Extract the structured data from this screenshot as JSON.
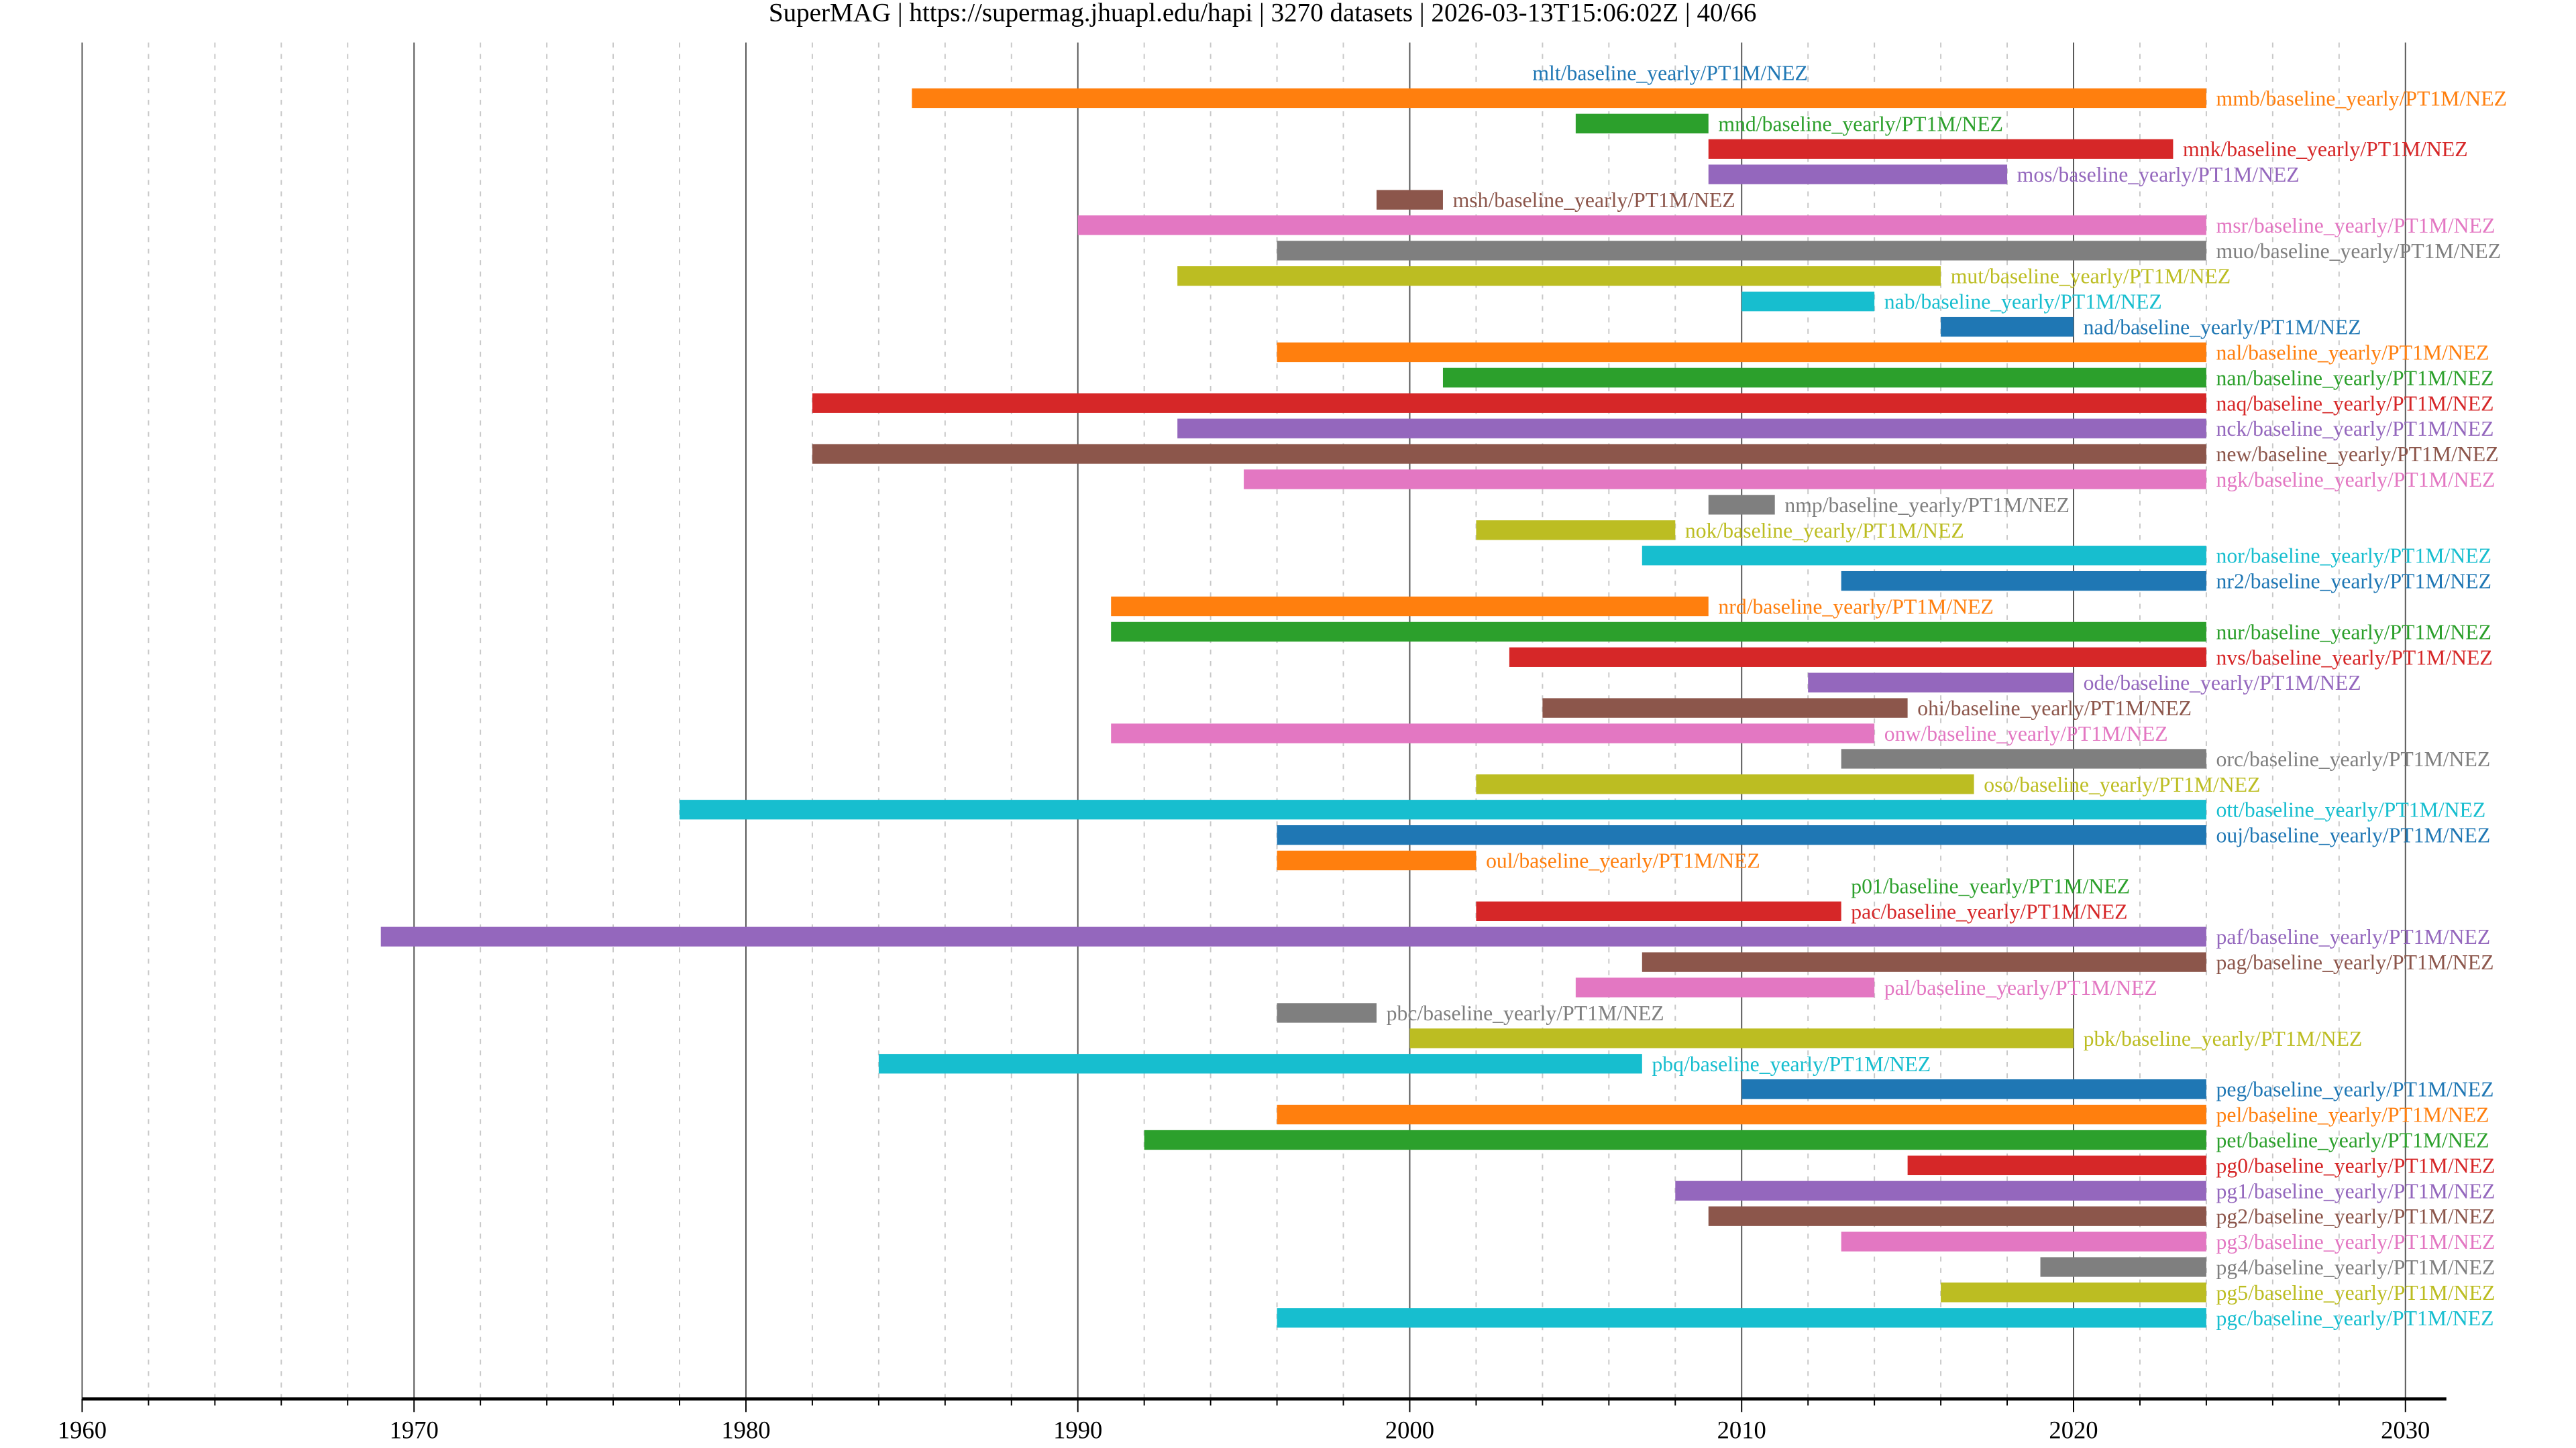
{
  "chart_data": {
    "type": "timeline",
    "title": "SuperMAG | https://supermag.jhuapl.edu/hapi | 3270 datasets | 2026-03-13T15:06:02Z | 40/66",
    "xlabel": "",
    "ylabel": "",
    "xlim": [
      1960,
      2031.3
    ],
    "xticks": [
      1960,
      1970,
      1980,
      1990,
      2000,
      2010,
      2020,
      2030
    ],
    "grid": {
      "major": "solid",
      "minor": "dashed"
    },
    "colors": [
      "#1f77b4",
      "#ff7f0e",
      "#2ca02c",
      "#d62728",
      "#9467bd",
      "#8c564b",
      "#e377c2",
      "#7f7f7f",
      "#bcbd22",
      "#17becf"
    ],
    "series": [
      {
        "name": "mlt/baseline_yearly/PT1M/NEZ",
        "start": 2024,
        "end": 2024
      },
      {
        "name": "mmb/baseline_yearly/PT1M/NEZ",
        "start": 1985,
        "end": 2024
      },
      {
        "name": "mnd/baseline_yearly/PT1M/NEZ",
        "start": 2005,
        "end": 2009
      },
      {
        "name": "mnk/baseline_yearly/PT1M/NEZ",
        "start": 2009,
        "end": 2023
      },
      {
        "name": "mos/baseline_yearly/PT1M/NEZ",
        "start": 2009,
        "end": 2018
      },
      {
        "name": "msh/baseline_yearly/PT1M/NEZ",
        "start": 1999,
        "end": 2001
      },
      {
        "name": "msr/baseline_yearly/PT1M/NEZ",
        "start": 1990,
        "end": 2024
      },
      {
        "name": "muo/baseline_yearly/PT1M/NEZ",
        "start": 1996,
        "end": 2024
      },
      {
        "name": "mut/baseline_yearly/PT1M/NEZ",
        "start": 1993,
        "end": 2016
      },
      {
        "name": "nab/baseline_yearly/PT1M/NEZ",
        "start": 2010,
        "end": 2014
      },
      {
        "name": "nad/baseline_yearly/PT1M/NEZ",
        "start": 2016,
        "end": 2020
      },
      {
        "name": "nal/baseline_yearly/PT1M/NEZ",
        "start": 1996,
        "end": 2024
      },
      {
        "name": "nan/baseline_yearly/PT1M/NEZ",
        "start": 2001,
        "end": 2024
      },
      {
        "name": "naq/baseline_yearly/PT1M/NEZ",
        "start": 1982,
        "end": 2024
      },
      {
        "name": "nck/baseline_yearly/PT1M/NEZ",
        "start": 1993,
        "end": 2024
      },
      {
        "name": "new/baseline_yearly/PT1M/NEZ",
        "start": 1982,
        "end": 2024
      },
      {
        "name": "ngk/baseline_yearly/PT1M/NEZ",
        "start": 1995,
        "end": 2024
      },
      {
        "name": "nmp/baseline_yearly/PT1M/NEZ",
        "start": 2009,
        "end": 2011
      },
      {
        "name": "nok/baseline_yearly/PT1M/NEZ",
        "start": 2002,
        "end": 2008
      },
      {
        "name": "nor/baseline_yearly/PT1M/NEZ",
        "start": 2007,
        "end": 2024
      },
      {
        "name": "nr2/baseline_yearly/PT1M/NEZ",
        "start": 2013,
        "end": 2024
      },
      {
        "name": "nrd/baseline_yearly/PT1M/NEZ",
        "start": 1991,
        "end": 2009
      },
      {
        "name": "nur/baseline_yearly/PT1M/NEZ",
        "start": 1991,
        "end": 2024
      },
      {
        "name": "nvs/baseline_yearly/PT1M/NEZ",
        "start": 2003,
        "end": 2024
      },
      {
        "name": "ode/baseline_yearly/PT1M/NEZ",
        "start": 2012,
        "end": 2020
      },
      {
        "name": "ohi/baseline_yearly/PT1M/NEZ",
        "start": 2004,
        "end": 2015
      },
      {
        "name": "onw/baseline_yearly/PT1M/NEZ",
        "start": 1991,
        "end": 2014
      },
      {
        "name": "orc/baseline_yearly/PT1M/NEZ",
        "start": 2013,
        "end": 2024
      },
      {
        "name": "oso/baseline_yearly/PT1M/NEZ",
        "start": 2002,
        "end": 2017
      },
      {
        "name": "ott/baseline_yearly/PT1M/NEZ",
        "start": 1978,
        "end": 2024
      },
      {
        "name": "ouj/baseline_yearly/PT1M/NEZ",
        "start": 1996,
        "end": 2024
      },
      {
        "name": "oul/baseline_yearly/PT1M/NEZ",
        "start": 1996,
        "end": 2002
      },
      {
        "name": "p01/baseline_yearly/PT1M/NEZ",
        "start": 2013,
        "end": 2013
      },
      {
        "name": "pac/baseline_yearly/PT1M/NEZ",
        "start": 2002,
        "end": 2013
      },
      {
        "name": "paf/baseline_yearly/PT1M/NEZ",
        "start": 1969,
        "end": 2024
      },
      {
        "name": "pag/baseline_yearly/PT1M/NEZ",
        "start": 2007,
        "end": 2024
      },
      {
        "name": "pal/baseline_yearly/PT1M/NEZ",
        "start": 2005,
        "end": 2014
      },
      {
        "name": "pbc/baseline_yearly/PT1M/NEZ",
        "start": 1996,
        "end": 1999
      },
      {
        "name": "pbk/baseline_yearly/PT1M/NEZ",
        "start": 2000,
        "end": 2020
      },
      {
        "name": "pbq/baseline_yearly/PT1M/NEZ",
        "start": 1984,
        "end": 2007
      },
      {
        "name": "peg/baseline_yearly/PT1M/NEZ",
        "start": 2010,
        "end": 2024
      },
      {
        "name": "pel/baseline_yearly/PT1M/NEZ",
        "start": 1996,
        "end": 2024
      },
      {
        "name": "pet/baseline_yearly/PT1M/NEZ",
        "start": 1992,
        "end": 2024
      },
      {
        "name": "pg0/baseline_yearly/PT1M/NEZ",
        "start": 2015,
        "end": 2024
      },
      {
        "name": "pg1/baseline_yearly/PT1M/NEZ",
        "start": 2008,
        "end": 2024
      },
      {
        "name": "pg2/baseline_yearly/PT1M/NEZ",
        "start": 2009,
        "end": 2024
      },
      {
        "name": "pg3/baseline_yearly/PT1M/NEZ",
        "start": 2013,
        "end": 2024
      },
      {
        "name": "pg4/baseline_yearly/PT1M/NEZ",
        "start": 2019,
        "end": 2024
      },
      {
        "name": "pg5/baseline_yearly/PT1M/NEZ",
        "start": 2016,
        "end": 2024
      },
      {
        "name": "pgc/baseline_yearly/PT1M/NEZ",
        "start": 1996,
        "end": 2024
      }
    ]
  }
}
